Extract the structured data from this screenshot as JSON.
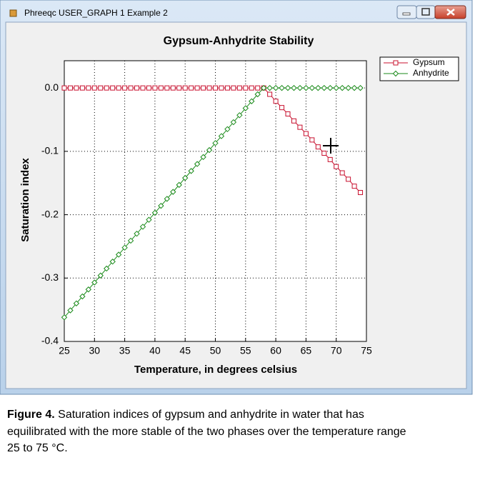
{
  "window": {
    "title": "Phreeqc USER_GRAPH 1 Example 2"
  },
  "chart_data": {
    "type": "line",
    "title": "Gypsum-Anhydrite Stability",
    "x_label": "Temperature, in degrees celsius",
    "y_label": "Saturation index",
    "x": [
      25,
      26,
      27,
      28,
      29,
      30,
      31,
      32,
      33,
      34,
      35,
      36,
      37,
      38,
      39,
      40,
      41,
      42,
      43,
      44,
      45,
      46,
      47,
      48,
      49,
      50,
      51,
      52,
      53,
      54,
      55,
      56,
      57,
      58,
      59,
      60,
      61,
      62,
      63,
      64,
      65,
      66,
      67,
      68,
      69,
      70,
      71,
      72,
      73,
      74
    ],
    "series": [
      {
        "name": "Gypsum",
        "color": "#c8102e",
        "marker": "square",
        "values": [
          0,
          0,
          0,
          0,
          0,
          0,
          0,
          0,
          0,
          0,
          0,
          0,
          0,
          0,
          0,
          0,
          0,
          0,
          0,
          0,
          0,
          0,
          0,
          0,
          0,
          0,
          0,
          0,
          0,
          0,
          0,
          0,
          0,
          0,
          -0.01,
          -0.021,
          -0.031,
          -0.041,
          -0.052,
          -0.062,
          -0.072,
          -0.082,
          -0.093,
          -0.103,
          -0.113,
          -0.124,
          -0.134,
          -0.144,
          -0.155,
          -0.165
        ]
      },
      {
        "name": "Anhydrite",
        "color": "#1a8a1a",
        "marker": "diamond",
        "values": [
          -0.362,
          -0.351,
          -0.34,
          -0.329,
          -0.318,
          -0.307,
          -0.296,
          -0.285,
          -0.274,
          -0.263,
          -0.252,
          -0.241,
          -0.23,
          -0.219,
          -0.208,
          -0.197,
          -0.186,
          -0.175,
          -0.164,
          -0.153,
          -0.142,
          -0.131,
          -0.12,
          -0.109,
          -0.098,
          -0.087,
          -0.076,
          -0.065,
          -0.054,
          -0.043,
          -0.032,
          -0.021,
          -0.01,
          0,
          0,
          0,
          0,
          0,
          0,
          0,
          0,
          0,
          0,
          0,
          0,
          0,
          0,
          0,
          0,
          0
        ]
      }
    ],
    "xlim": [
      25,
      75
    ],
    "xticks": [
      25,
      30,
      35,
      40,
      45,
      50,
      55,
      60,
      65,
      70,
      75
    ],
    "ylim": [
      -0.4,
      0.043
    ],
    "yticks": [
      {
        "value": 0,
        "label": "0.0"
      },
      -0.1,
      -0.2,
      -0.3,
      -0.4
    ],
    "grid": true,
    "legend": "upper right"
  },
  "caption": {
    "label": "Figure 4.",
    "lines": [
      "Saturation indices of gypsum and anhydrite in water that has",
      "equilibrated with the more stable of the two phases over the temperature range",
      "25 to 75 °C."
    ]
  }
}
